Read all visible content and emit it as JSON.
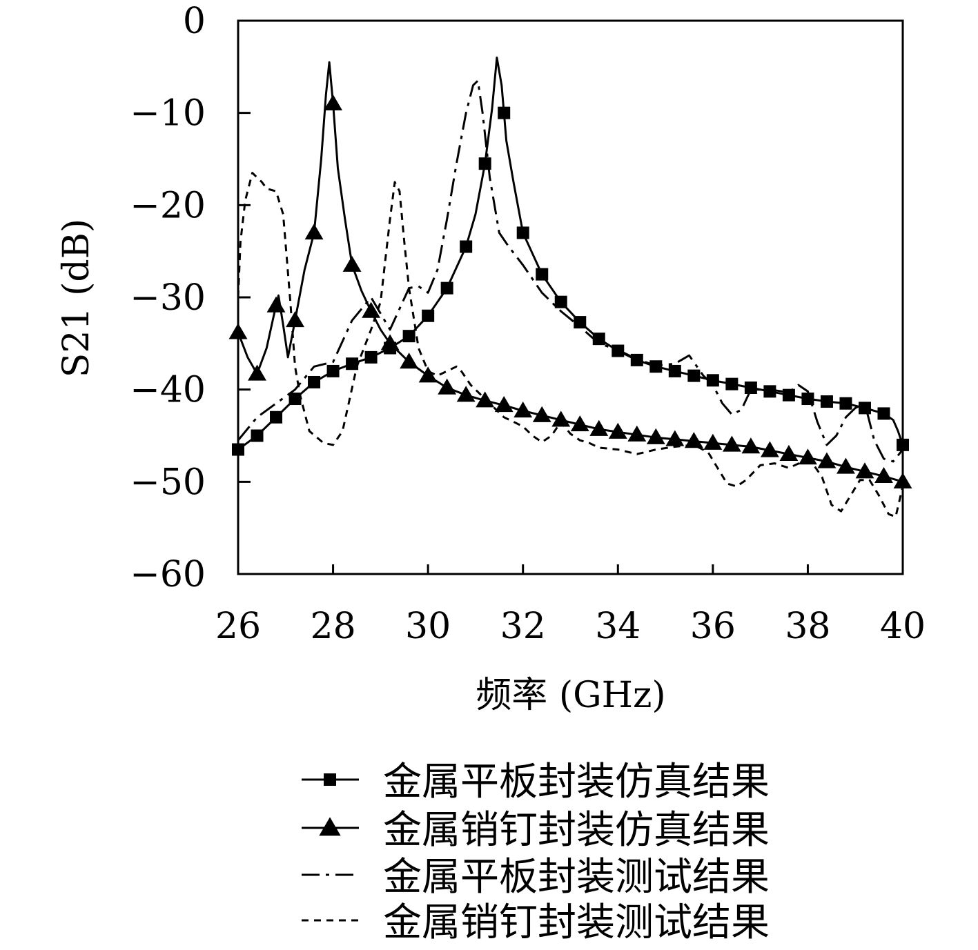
{
  "chart_data": {
    "type": "line",
    "title": "",
    "xlabel": "频率 (GHz)",
    "ylabel": "S21 (dB)",
    "xlim": [
      26,
      40
    ],
    "ylim": [
      -60,
      0
    ],
    "xticks": [
      26,
      28,
      30,
      32,
      34,
      36,
      38,
      40
    ],
    "yticks": [
      0,
      -10,
      -20,
      -30,
      -40,
      -50,
      -60
    ],
    "xtick_labels": [
      "26",
      "28",
      "30",
      "32",
      "34",
      "36",
      "38",
      "40"
    ],
    "ytick_labels": [
      "0",
      "−10",
      "−20",
      "−30",
      "−40",
      "−50",
      "−60"
    ],
    "grid": false,
    "legend_position": "bottom",
    "series": [
      {
        "name": "金属平板封装仿真结果",
        "line_style": "solid",
        "marker": "square",
        "x": [
          26.0,
          26.4,
          26.8,
          27.2,
          27.6,
          28.0,
          28.4,
          28.8,
          29.2,
          29.6,
          30.0,
          30.4,
          30.8,
          31.0,
          31.2,
          31.35,
          31.45,
          31.55,
          31.65,
          31.8,
          32.0,
          32.4,
          32.8,
          33.2,
          33.6,
          34.0,
          34.4,
          34.8,
          35.2,
          35.6,
          36.0,
          36.4,
          36.8,
          37.2,
          37.6,
          38.0,
          38.4,
          38.8,
          39.2,
          39.6,
          39.8,
          39.9,
          40.0
        ],
        "y": [
          -46.5,
          -45.0,
          -43.0,
          -41.0,
          -39.2,
          -38.0,
          -37.2,
          -36.5,
          -35.5,
          -34.2,
          -32.0,
          -29.0,
          -24.5,
          -21.0,
          -15.5,
          -9.5,
          -4.0,
          -7.0,
          -13.0,
          -17.5,
          -23.0,
          -27.5,
          -30.5,
          -32.7,
          -34.5,
          -35.8,
          -36.8,
          -37.5,
          -38.0,
          -38.5,
          -39.0,
          -39.4,
          -39.8,
          -40.2,
          -40.6,
          -41.0,
          -41.3,
          -41.5,
          -42.0,
          -42.6,
          -43.3,
          -44.5,
          -46.0
        ],
        "marker_x": [
          26.0,
          26.4,
          26.8,
          27.2,
          27.6,
          28.0,
          28.4,
          28.8,
          29.2,
          29.6,
          30.0,
          30.4,
          30.8,
          31.2,
          31.6,
          32.0,
          32.4,
          32.8,
          33.2,
          33.6,
          34.0,
          34.4,
          34.8,
          35.2,
          35.6,
          36.0,
          36.4,
          36.8,
          37.2,
          37.6,
          38.0,
          38.4,
          38.8,
          39.2,
          39.6,
          40.0
        ]
      },
      {
        "name": "金属销钉封装仿真结果",
        "line_style": "solid",
        "marker": "triangle",
        "x": [
          26.0,
          26.2,
          26.4,
          26.6,
          26.75,
          26.85,
          26.95,
          27.05,
          27.2,
          27.4,
          27.6,
          27.75,
          27.85,
          27.92,
          28.0,
          28.1,
          28.25,
          28.4,
          28.6,
          28.8,
          29.0,
          29.2,
          29.6,
          30.0,
          30.4,
          30.8,
          31.2,
          31.6,
          32.0,
          32.4,
          32.8,
          33.2,
          33.6,
          34.0,
          34.4,
          34.8,
          35.2,
          35.6,
          36.0,
          36.4,
          36.8,
          37.2,
          37.6,
          38.0,
          38.4,
          38.8,
          39.2,
          39.6,
          40.0
        ],
        "y": [
          -33.8,
          -36.5,
          -38.3,
          -35.5,
          -32.0,
          -29.8,
          -33.0,
          -36.5,
          -32.5,
          -27.0,
          -23.0,
          -15.0,
          -8.0,
          -4.5,
          -9.0,
          -16.0,
          -21.5,
          -26.5,
          -29.3,
          -31.5,
          -33.5,
          -35.0,
          -37.0,
          -38.5,
          -39.8,
          -40.6,
          -41.2,
          -41.7,
          -42.3,
          -42.8,
          -43.3,
          -43.8,
          -44.3,
          -44.6,
          -44.9,
          -45.2,
          -45.4,
          -45.6,
          -45.8,
          -46.0,
          -46.2,
          -46.6,
          -47.0,
          -47.4,
          -47.8,
          -48.4,
          -48.9,
          -49.4,
          -50.0
        ],
        "marker_x": [
          26.0,
          26.4,
          26.8,
          27.2,
          27.6,
          28.0,
          28.4,
          28.8,
          29.2,
          29.6,
          30.0,
          30.4,
          30.8,
          31.2,
          31.6,
          32.0,
          32.4,
          32.8,
          33.2,
          33.6,
          34.0,
          34.4,
          34.8,
          35.2,
          35.6,
          36.0,
          36.4,
          36.8,
          37.2,
          37.6,
          38.0,
          38.4,
          38.8,
          39.2,
          39.6,
          40.0
        ]
      },
      {
        "name": "金属平板封装测试结果",
        "line_style": "dashdot",
        "marker": "none",
        "x": [
          26.0,
          26.4,
          26.8,
          27.2,
          27.6,
          28.0,
          28.4,
          28.8,
          29.2,
          29.6,
          29.8,
          30.0,
          30.2,
          30.4,
          30.6,
          30.8,
          30.95,
          31.05,
          31.15,
          31.3,
          31.5,
          31.7,
          32.0,
          32.4,
          32.8,
          33.2,
          33.6,
          34.0,
          34.4,
          34.8,
          35.2,
          35.5,
          35.8,
          36.0,
          36.2,
          36.4,
          36.6,
          36.8,
          37.2,
          37.6,
          37.8,
          38.0,
          38.2,
          38.4,
          38.6,
          38.8,
          39.0,
          39.2,
          39.4,
          39.6,
          39.8,
          40.0
        ],
        "y": [
          -45.5,
          -43.0,
          -41.5,
          -40.0,
          -37.5,
          -37.0,
          -32.5,
          -30.0,
          -33.5,
          -29.0,
          -28.8,
          -29.5,
          -27.0,
          -21.5,
          -15.5,
          -10.0,
          -7.0,
          -6.5,
          -10.0,
          -17.0,
          -23.0,
          -24.5,
          -26.5,
          -29.5,
          -31.5,
          -33.2,
          -35.0,
          -35.7,
          -36.7,
          -37.4,
          -37.2,
          -36.3,
          -38.5,
          -39.5,
          -41.5,
          -42.7,
          -42.2,
          -40.0,
          -40.0,
          -40.3,
          -39.5,
          -40.2,
          -43.5,
          -46.0,
          -45.0,
          -43.0,
          -42.0,
          -41.5,
          -45.5,
          -47.5,
          -47.8,
          -46.5
        ]
      },
      {
        "name": "金属销钉封装测试结果",
        "line_style": "dashed",
        "marker": "none",
        "x": [
          26.0,
          26.05,
          26.15,
          26.3,
          26.5,
          26.6,
          26.8,
          26.95,
          27.1,
          27.2,
          27.3,
          27.5,
          27.8,
          28.0,
          28.2,
          28.5,
          28.8,
          29.0,
          29.1,
          29.2,
          29.3,
          29.4,
          29.5,
          29.6,
          29.8,
          30.0,
          30.2,
          30.4,
          30.6,
          30.7,
          30.9,
          31.0,
          31.2,
          31.4,
          31.6,
          31.8,
          32.0,
          32.2,
          32.4,
          32.6,
          32.8,
          33.0,
          33.2,
          33.4,
          33.6,
          34.0,
          34.4,
          34.8,
          35.2,
          35.6,
          35.9,
          36.1,
          36.3,
          36.5,
          36.7,
          37.0,
          37.3,
          37.6,
          37.9,
          38.1,
          38.3,
          38.5,
          38.7,
          38.9,
          39.1,
          39.3,
          39.5,
          39.7,
          39.85,
          40.0
        ],
        "y": [
          -30.0,
          -24.0,
          -19.5,
          -16.5,
          -17.5,
          -18.2,
          -18.5,
          -21.0,
          -30.5,
          -37.5,
          -40.5,
          -44.5,
          -45.8,
          -46.0,
          -44.5,
          -37.5,
          -33.5,
          -30.5,
          -26.0,
          -21.5,
          -17.5,
          -18.5,
          -24.0,
          -29.0,
          -35.5,
          -38.0,
          -38.5,
          -38.0,
          -37.5,
          -38.0,
          -39.5,
          -40.0,
          -41.0,
          -42.0,
          -43.0,
          -43.5,
          -44.0,
          -45.0,
          -45.7,
          -45.0,
          -43.5,
          -44.8,
          -45.5,
          -45.8,
          -46.3,
          -46.5,
          -47.0,
          -46.5,
          -46.2,
          -46.0,
          -46.8,
          -48.5,
          -50.2,
          -50.5,
          -49.8,
          -48.2,
          -48.0,
          -48.5,
          -47.8,
          -48.0,
          -49.5,
          -52.5,
          -53.2,
          -51.5,
          -49.8,
          -49.8,
          -51.5,
          -53.5,
          -53.8,
          -50.5
        ]
      }
    ]
  }
}
